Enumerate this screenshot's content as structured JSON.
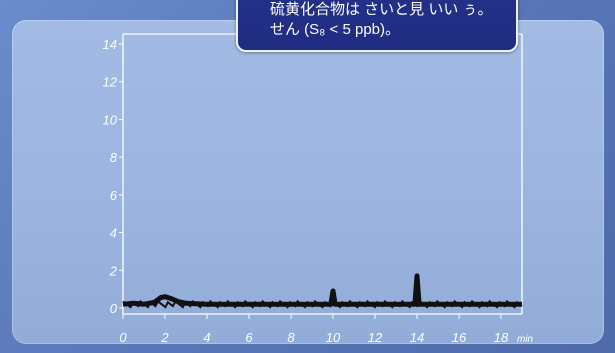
{
  "callout": {
    "line1": "硫黄化合物は さいと見 いい ぅ。",
    "line2": "せん (S₈ < 5 ppb)。"
  },
  "colors": {
    "background": "#5d7cbd",
    "panel": "#9bb5e0",
    "callout": "#1f2c80",
    "trace": "#111111",
    "axis": "#ffffff"
  },
  "chart_data": {
    "type": "line",
    "title": "",
    "xlabel": "",
    "ylabel": "",
    "x_unit": "min",
    "xlim": [
      0,
      19
    ],
    "ylim": [
      0,
      15
    ],
    "x_ticks": [
      0,
      2,
      4,
      6,
      8,
      10,
      12,
      14,
      16,
      18
    ],
    "y_ticks": [
      0,
      2,
      4,
      6,
      8,
      10,
      12,
      14
    ],
    "grid": false,
    "series": [
      {
        "x": [
          0,
          0.5,
          1,
          1.5,
          1.8,
          2.0,
          2.3,
          2.6,
          3,
          4,
          5,
          6,
          7,
          8,
          9,
          9.9,
          10.0,
          10.1,
          11,
          12,
          13,
          13.9,
          14.0,
          14.1,
          15,
          16,
          17,
          18,
          19
        ],
        "y": [
          0.2,
          0.25,
          0.2,
          0.3,
          0.55,
          0.6,
          0.5,
          0.35,
          0.25,
          0.2,
          0.2,
          0.2,
          0.2,
          0.2,
          0.2,
          0.2,
          0.9,
          0.2,
          0.2,
          0.2,
          0.2,
          0.2,
          1.7,
          0.2,
          0.2,
          0.2,
          0.2,
          0.2,
          0.2
        ]
      }
    ]
  }
}
